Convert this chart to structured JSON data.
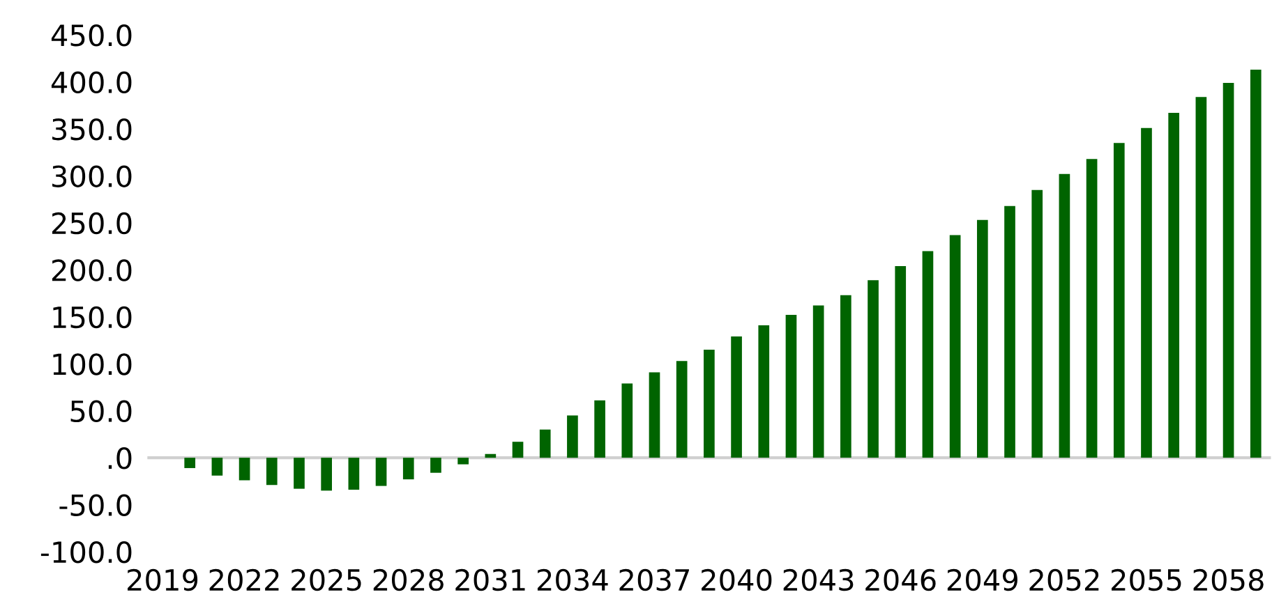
{
  "chart_data": {
    "type": "bar",
    "color": "#006400",
    "categories": [
      "2019",
      null,
      null,
      "2022",
      null,
      null,
      "2025",
      null,
      null,
      "2028",
      null,
      null,
      "2031",
      null,
      null,
      "2034",
      null,
      null,
      "2037",
      null,
      null,
      "2040",
      null,
      null,
      "2043",
      null,
      null,
      "2046",
      null,
      null,
      "2049",
      null,
      null,
      "2052",
      null,
      null,
      "2055",
      null,
      null,
      "2058",
      null
    ],
    "values": [
      null,
      -11,
      -19,
      -24,
      -29,
      -33,
      -35,
      -34,
      -30,
      -23,
      -16,
      -7,
      4,
      17,
      30,
      45,
      61,
      79,
      91,
      103,
      115,
      129,
      141,
      152,
      162,
      173,
      189,
      204,
      220,
      237,
      253,
      268,
      285,
      302,
      318,
      335,
      351,
      367,
      384,
      399,
      413
    ],
    "ylim": [
      -100,
      450
    ],
    "yticks": [
      {
        "value": -100,
        "label": "-100.0"
      },
      {
        "value": -50,
        "label": "-50.0"
      },
      {
        "value": 0,
        "label": ".0"
      },
      {
        "value": 50,
        "label": "50.0"
      },
      {
        "value": 100,
        "label": "100.0"
      },
      {
        "value": 150,
        "label": "150.0"
      },
      {
        "value": 200,
        "label": "200.0"
      },
      {
        "value": 250,
        "label": "250.0"
      },
      {
        "value": 300,
        "label": "300.0"
      },
      {
        "value": 350,
        "label": "350.0"
      },
      {
        "value": 400,
        "label": "400.0"
      },
      {
        "value": 450,
        "label": "450.0"
      }
    ],
    "legend": false
  }
}
